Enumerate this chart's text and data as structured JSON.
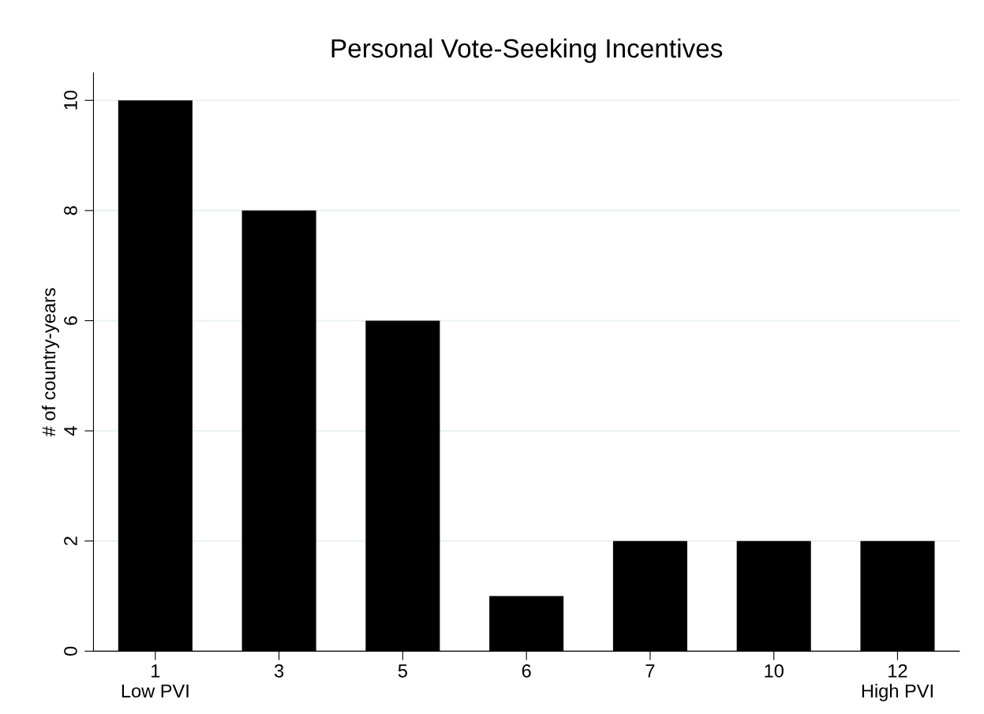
{
  "chart_data": {
    "type": "bar",
    "title": "Personal Vote-Seeking Incentives",
    "ylabel": "# of country-years",
    "categories": [
      "1\nLow PVI",
      "3",
      "5",
      "6",
      "7",
      "10",
      "12\nHigh PVI"
    ],
    "values": [
      10,
      8,
      6,
      1,
      2,
      2,
      2
    ],
    "color": "#000000",
    "ylim": [
      0,
      10.5
    ],
    "yticks": [
      0,
      2,
      4,
      6,
      8,
      10
    ],
    "grid": "y"
  }
}
